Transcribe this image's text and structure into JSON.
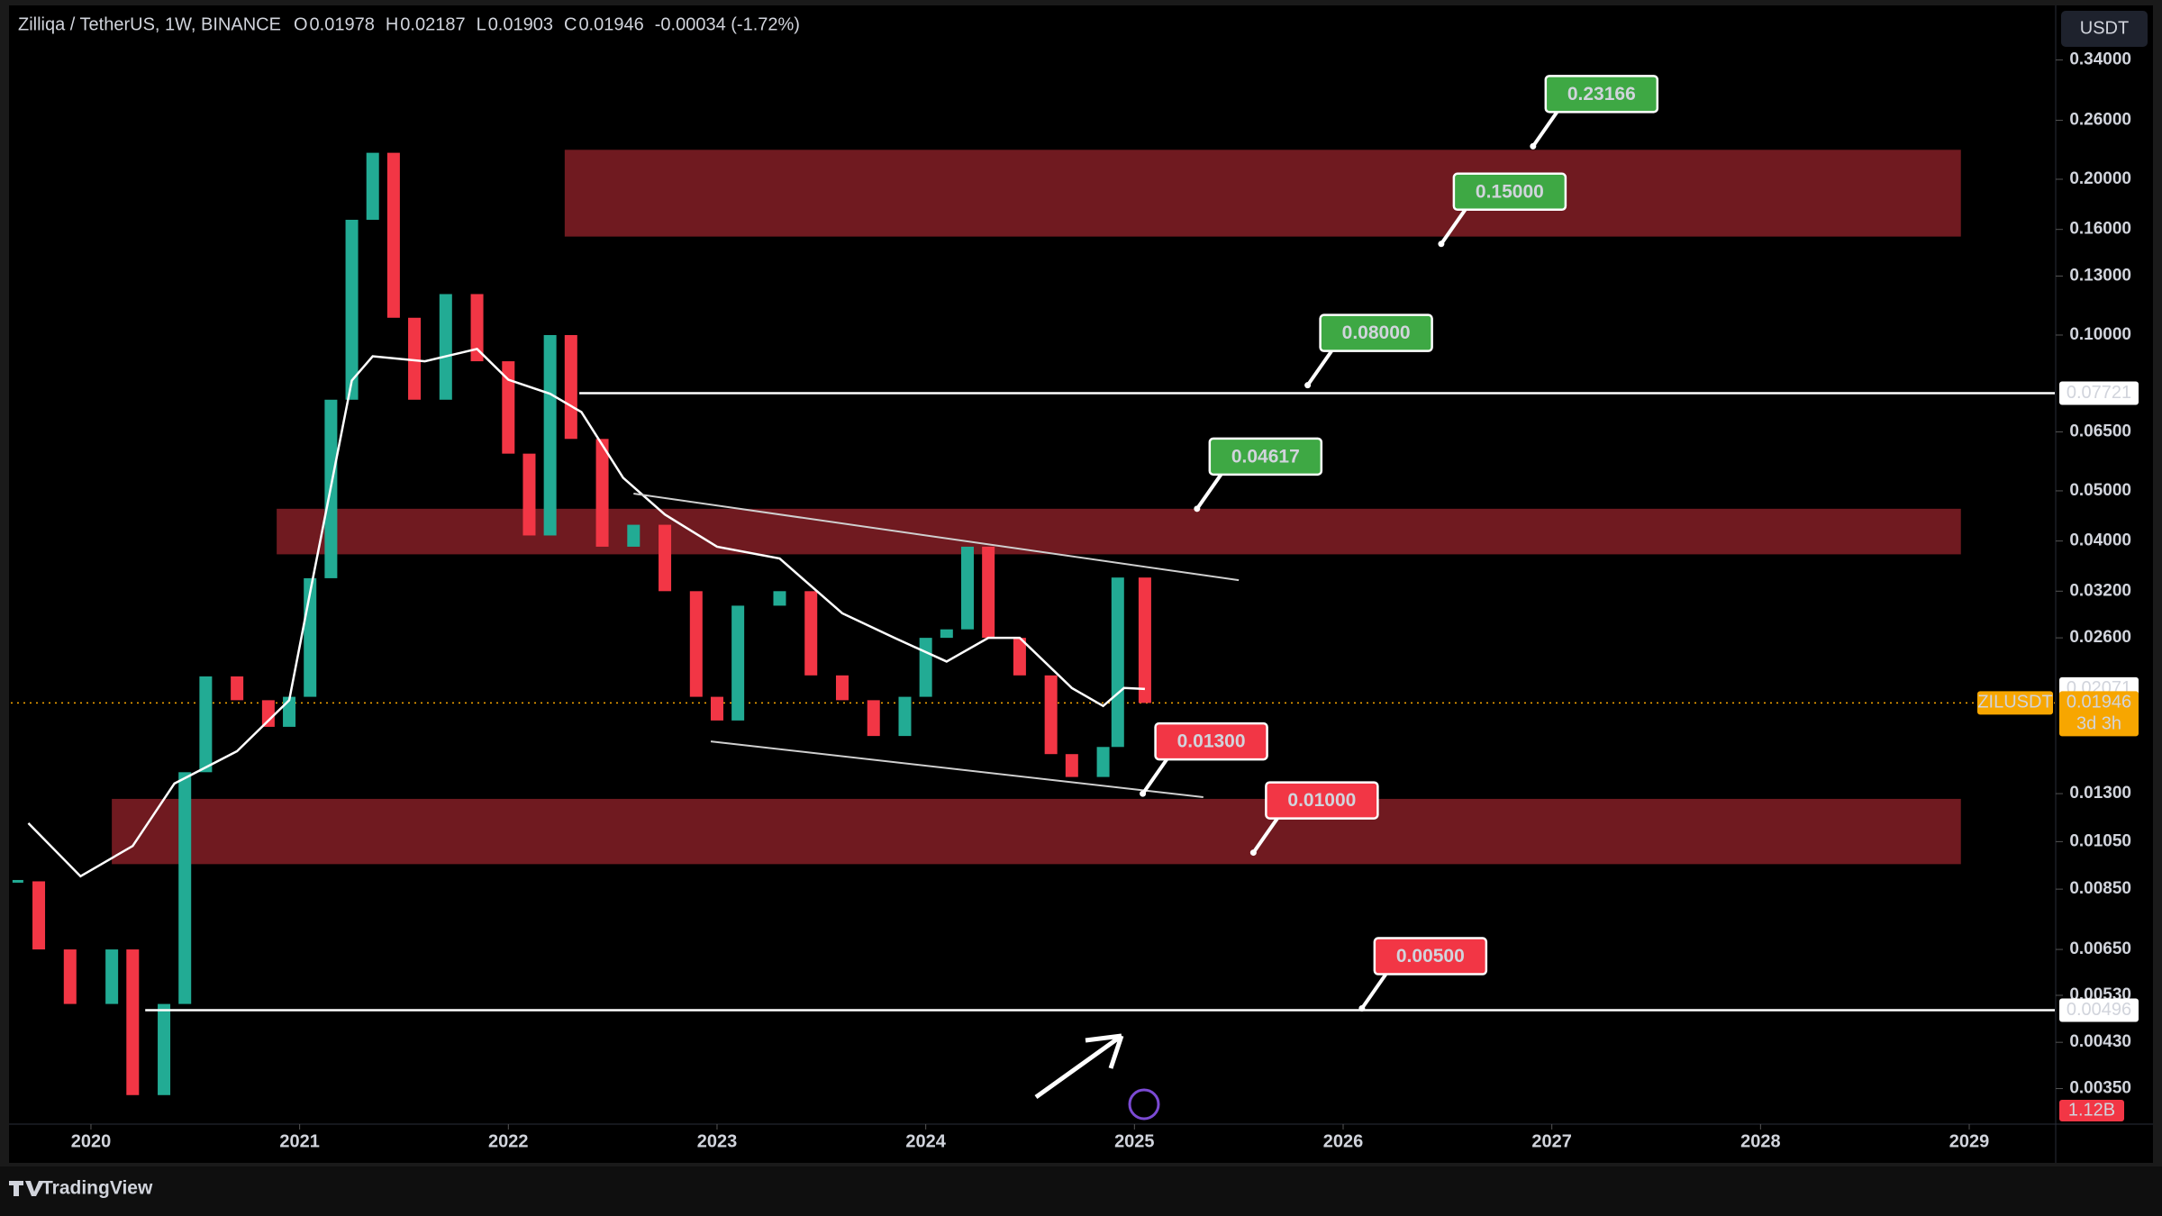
{
  "header": {
    "symbol": "Zilliqa / TetherUS, 1W, BINANCE",
    "keys": [
      "O",
      "H",
      "L",
      "C"
    ],
    "open": 0.01978,
    "high": 0.02187,
    "low": 0.01903,
    "close": 0.01946,
    "change": "-0.00034 (-1.72%)"
  },
  "currency_button": "USDT",
  "footer": "TradingView",
  "chart_data": {
    "type": "candlestick",
    "yscale": "log",
    "grid": false,
    "xlim": [
      2019.616,
      2029.41
    ],
    "xticks": [
      2020,
      2021,
      2022,
      2023,
      2024,
      2025,
      2026,
      2027,
      2028,
      2029
    ],
    "ylim": [
      0.003,
      0.43
    ],
    "yticks": [
      {
        "value": 0.34,
        "label": "0.34000"
      },
      {
        "value": 0.26,
        "label": "0.26000"
      },
      {
        "value": 0.2,
        "label": "0.20000"
      },
      {
        "value": 0.16,
        "label": "0.16000"
      },
      {
        "value": 0.13,
        "label": "0.13000"
      },
      {
        "value": 0.1,
        "label": "0.10000"
      },
      {
        "value": 0.065,
        "label": "0.06500"
      },
      {
        "value": 0.05,
        "label": "0.05000"
      },
      {
        "value": 0.04,
        "label": "0.04000"
      },
      {
        "value": 0.032,
        "label": "0.03200"
      },
      {
        "value": 0.026,
        "label": "0.02600"
      },
      {
        "value": 0.013,
        "label": "0.01300"
      },
      {
        "value": 0.0105,
        "label": "0.01050"
      },
      {
        "value": 0.0085,
        "label": "0.00850"
      },
      {
        "value": 0.0065,
        "label": "0.00650"
      },
      {
        "value": 0.0053,
        "label": "0.00530"
      },
      {
        "value": 0.0043,
        "label": "0.00430"
      },
      {
        "value": 0.0035,
        "label": "0.00350"
      }
    ],
    "series": [
      {
        "color": "#22ab94",
        "down_color": "#f23645",
        "x": [
          2019.65,
          2019.75,
          2019.9,
          2020.1,
          2020.2,
          2020.35,
          2020.45,
          2020.55,
          2020.7,
          2020.85,
          2020.95,
          2021.05,
          2021.15,
          2021.25,
          2021.35,
          2021.45,
          2021.55,
          2021.7,
          2021.85,
          2022.0,
          2022.1,
          2022.2,
          2022.3,
          2022.45,
          2022.6,
          2022.75,
          2022.9,
          2023.0,
          2023.1,
          2023.3,
          2023.45,
          2023.6,
          2023.75,
          2023.9,
          2024.0,
          2024.1,
          2024.2,
          2024.3,
          2024.45,
          2024.6,
          2024.7,
          2024.85,
          2024.92,
          2025.05
        ],
        "values": [
          0.0088,
          0.0065,
          0.0051,
          0.0065,
          0.0034,
          0.0051,
          0.0143,
          0.0219,
          0.0197,
          0.0175,
          0.02,
          0.0339,
          0.075,
          0.167,
          0.225,
          0.108,
          0.075,
          0.12,
          0.089,
          0.059,
          0.041,
          0.1,
          0.063,
          0.039,
          0.043,
          0.032,
          0.02,
          0.018,
          0.03,
          0.032,
          0.022,
          0.0197,
          0.0168,
          0.02,
          0.026,
          0.027,
          0.039,
          0.026,
          0.022,
          0.0155,
          0.014,
          0.016,
          0.034,
          0.01946
        ]
      },
      {
        "color": "#ffffff",
        "x": [
          2019.7,
          2019.95,
          2020.2,
          2020.4,
          2020.7,
          2020.95,
          2021.05,
          2021.25,
          2021.35,
          2021.6,
          2021.85,
          2022.0,
          2022.2,
          2022.35,
          2022.55,
          2022.75,
          2023.0,
          2023.3,
          2023.6,
          2023.85,
          2024.1,
          2024.3,
          2024.45,
          2024.7,
          2024.85,
          2024.95,
          2025.05
        ],
        "values": [
          0.0114,
          0.009,
          0.0103,
          0.0136,
          0.0157,
          0.0197,
          0.0318,
          0.0817,
          0.091,
          0.089,
          0.094,
          0.082,
          0.077,
          0.071,
          0.053,
          0.045,
          0.039,
          0.037,
          0.029,
          0.026,
          0.0234,
          0.026,
          0.026,
          0.0208,
          0.0192,
          0.0208,
          0.02071
        ]
      }
    ],
    "zones": [
      {
        "x0": 2022.27,
        "x1": 2028.96,
        "low": 0.155,
        "high": 0.228
      },
      {
        "x0": 2020.89,
        "x1": 2028.96,
        "low": 0.0377,
        "high": 0.04617
      },
      {
        "x0": 2020.1,
        "x1": 2028.96,
        "low": 0.0095,
        "high": 0.0127
      }
    ],
    "trendlines": [
      {
        "x": [
          2022.6,
          2025.5
        ],
        "values": [
          0.0494,
          0.0336
        ]
      },
      {
        "x": [
          2022.97,
          2025.33
        ],
        "values": [
          0.0164,
          0.0128
        ]
      }
    ],
    "levels": [
      {
        "x0": 2022.34,
        "value": 0.07721
      },
      {
        "x0": 2020.26,
        "value": 0.00496
      }
    ],
    "callouts": [
      {
        "x": 2026.91,
        "value": 0.23166,
        "label": "0.23166",
        "color": "#3ea844"
      },
      {
        "x": 2026.47,
        "value": 0.15,
        "label": "0.15000",
        "color": "#3ea844"
      },
      {
        "x": 2025.83,
        "value": 0.08,
        "label": "0.08000",
        "color": "#3ea844"
      },
      {
        "x": 2025.3,
        "value": 0.04617,
        "label": "0.04617",
        "color": "#3ea844"
      },
      {
        "x": 2025.04,
        "value": 0.013,
        "label": "0.01300",
        "color": "#f23645"
      },
      {
        "x": 2025.57,
        "value": 0.01,
        "label": "0.01000",
        "color": "#f23645"
      },
      {
        "x": 2026.09,
        "value": 0.005,
        "label": "0.00500",
        "color": "#f23645"
      }
    ],
    "indicator_value": 0.02071,
    "symbol_badge": "ZILUSDT",
    "countdown": "3d 3h",
    "volume_label": "1.12B"
  }
}
